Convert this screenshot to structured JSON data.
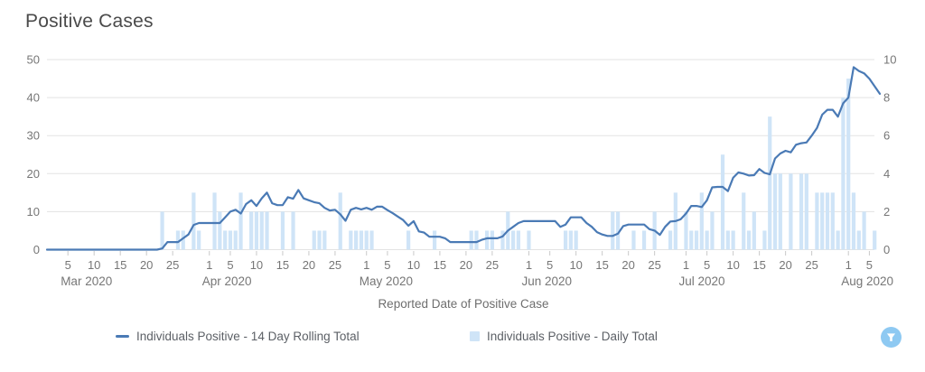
{
  "header": {
    "title": "Positive Cases"
  },
  "colors": {
    "line": "#4a7ab5",
    "bar": "#cfe4f7",
    "grid": "#e3e3e3",
    "axis_text": "#767676",
    "tick_mark": "#c9c9c9",
    "title_text": "#4a4a4a",
    "legend_text": "#5c6066",
    "filter_bg": "#8ec9f2",
    "filter_glyph": "#ffffff"
  },
  "filter_button": {
    "icon": "funnel-icon"
  },
  "chart_data": {
    "type": "line+bar",
    "title": "Positive Cases",
    "xlabel": "Reported Date of Positive Case",
    "x_unit": "days since 2020-03-01",
    "grid": "horizontal",
    "legend_position": "bottom",
    "left_axis": {
      "range": [
        0,
        50
      ],
      "ticks": [
        0,
        10,
        20,
        30,
        40,
        50
      ]
    },
    "right_axis": {
      "range": [
        0,
        10
      ],
      "ticks": [
        0,
        2,
        4,
        6,
        8,
        10
      ]
    },
    "months": [
      {
        "label": "Mar 2020",
        "start_day": 0,
        "ticks": [
          5,
          10,
          15,
          20,
          25
        ]
      },
      {
        "label": "Apr 2020",
        "start_day": 31,
        "ticks": [
          1,
          5,
          10,
          15,
          20,
          25
        ]
      },
      {
        "label": "May 2020",
        "start_day": 61,
        "ticks": [
          1,
          5,
          10,
          15,
          20,
          25
        ]
      },
      {
        "label": "Jun 2020",
        "start_day": 92,
        "ticks": [
          1,
          5,
          10,
          15,
          20,
          25
        ]
      },
      {
        "label": "Jul 2020",
        "start_day": 122,
        "ticks": [
          1,
          5,
          10,
          15,
          20,
          25
        ]
      },
      {
        "label": "Aug 2020",
        "start_day": 153,
        "ticks": [
          1,
          5
        ]
      }
    ],
    "series": [
      {
        "name": "Individuals Positive - 14 Day Rolling Total",
        "type": "line",
        "axis": "left",
        "points": [
          [
            0,
            0
          ],
          [
            21,
            0
          ],
          [
            22,
            0.3
          ],
          [
            23,
            2
          ],
          [
            24,
            2
          ],
          [
            25,
            2
          ],
          [
            26,
            3
          ],
          [
            27,
            4
          ],
          [
            28,
            6.5
          ],
          [
            29,
            7
          ],
          [
            33,
            7
          ],
          [
            34,
            8.5
          ],
          [
            35,
            10
          ],
          [
            36,
            10.5
          ],
          [
            37,
            9.5
          ],
          [
            38,
            12
          ],
          [
            39,
            13
          ],
          [
            40,
            11.5
          ],
          [
            41,
            13.5
          ],
          [
            42,
            15
          ],
          [
            43,
            12.2
          ],
          [
            44,
            11.7
          ],
          [
            45,
            11.7
          ],
          [
            46,
            13.8
          ],
          [
            47,
            13.4
          ],
          [
            48,
            15.7
          ],
          [
            49,
            13.5
          ],
          [
            50,
            13
          ],
          [
            51,
            12.5
          ],
          [
            52,
            12.2
          ],
          [
            53,
            11
          ],
          [
            54,
            10.3
          ],
          [
            55,
            10.5
          ],
          [
            56,
            9.3
          ],
          [
            57,
            7.6
          ],
          [
            58,
            10.5
          ],
          [
            59,
            11
          ],
          [
            60,
            10.6
          ],
          [
            61,
            11
          ],
          [
            62,
            10.5
          ],
          [
            63,
            11.3
          ],
          [
            64,
            11.3
          ],
          [
            65,
            10.4
          ],
          [
            66,
            9.6
          ],
          [
            67,
            8.7
          ],
          [
            68,
            7.8
          ],
          [
            69,
            6.3
          ],
          [
            70,
            7.5
          ],
          [
            71,
            4.8
          ],
          [
            72,
            4.5
          ],
          [
            73,
            3.4
          ],
          [
            75,
            3.4
          ],
          [
            76,
            3
          ],
          [
            77,
            2
          ],
          [
            82,
            2
          ],
          [
            83,
            2.6
          ],
          [
            84,
            3
          ],
          [
            86,
            3
          ],
          [
            87,
            3.5
          ],
          [
            88,
            5
          ],
          [
            89,
            6
          ],
          [
            90,
            7
          ],
          [
            91,
            7.5
          ],
          [
            97,
            7.5
          ],
          [
            98,
            6
          ],
          [
            99,
            6.6
          ],
          [
            100,
            8.5
          ],
          [
            102,
            8.5
          ],
          [
            103,
            7
          ],
          [
            104,
            6
          ],
          [
            105,
            4.6
          ],
          [
            106,
            4
          ],
          [
            107,
            3.6
          ],
          [
            108,
            3.6
          ],
          [
            109,
            4.2
          ],
          [
            110,
            6.2
          ],
          [
            111,
            6.6
          ],
          [
            114,
            6.6
          ],
          [
            115,
            5.4
          ],
          [
            116,
            5
          ],
          [
            117,
            3.9
          ],
          [
            118,
            6
          ],
          [
            119,
            7.4
          ],
          [
            120,
            7.5
          ],
          [
            121,
            8
          ],
          [
            122,
            9.5
          ],
          [
            123,
            11.5
          ],
          [
            124,
            11.5
          ],
          [
            125,
            11.2
          ],
          [
            126,
            13
          ],
          [
            127,
            16.4
          ],
          [
            128,
            16.5
          ],
          [
            129,
            16.5
          ],
          [
            130,
            15.4
          ],
          [
            131,
            18.9
          ],
          [
            132,
            20.3
          ],
          [
            133,
            20
          ],
          [
            134,
            19.5
          ],
          [
            135,
            19.6
          ],
          [
            136,
            21.2
          ],
          [
            137,
            20.2
          ],
          [
            138,
            19.8
          ],
          [
            139,
            24
          ],
          [
            140,
            25.3
          ],
          [
            141,
            26
          ],
          [
            142,
            25.6
          ],
          [
            143,
            27.6
          ],
          [
            144,
            28
          ],
          [
            145,
            28.2
          ],
          [
            146,
            30
          ],
          [
            147,
            32
          ],
          [
            148,
            35.5
          ],
          [
            149,
            36.8
          ],
          [
            150,
            36.8
          ],
          [
            151,
            35
          ],
          [
            152,
            38.5
          ],
          [
            153,
            40
          ],
          [
            154,
            48
          ],
          [
            155,
            47
          ],
          [
            156,
            46.4
          ],
          [
            157,
            45
          ],
          [
            158,
            43
          ],
          [
            159,
            41
          ]
        ]
      },
      {
        "name": "Individuals Positive - Daily Total",
        "type": "bar",
        "axis": "right",
        "points": [
          [
            22,
            2
          ],
          [
            25,
            1
          ],
          [
            26,
            1
          ],
          [
            28,
            3
          ],
          [
            29,
            1
          ],
          [
            32,
            3
          ],
          [
            33,
            2
          ],
          [
            34,
            1
          ],
          [
            35,
            1
          ],
          [
            36,
            1
          ],
          [
            37,
            3
          ],
          [
            39,
            2
          ],
          [
            40,
            2
          ],
          [
            41,
            2
          ],
          [
            42,
            2
          ],
          [
            45,
            2
          ],
          [
            47,
            2
          ],
          [
            51,
            1
          ],
          [
            52,
            1
          ],
          [
            53,
            1
          ],
          [
            56,
            3
          ],
          [
            58,
            1
          ],
          [
            59,
            1
          ],
          [
            60,
            1
          ],
          [
            61,
            1
          ],
          [
            62,
            1
          ],
          [
            69,
            1
          ],
          [
            74,
            1
          ],
          [
            81,
            1
          ],
          [
            82,
            1
          ],
          [
            84,
            1
          ],
          [
            85,
            1
          ],
          [
            87,
            1
          ],
          [
            88,
            2
          ],
          [
            89,
            1
          ],
          [
            90,
            1
          ],
          [
            92,
            1
          ],
          [
            99,
            1
          ],
          [
            100,
            1
          ],
          [
            101,
            1
          ],
          [
            108,
            2
          ],
          [
            109,
            2
          ],
          [
            112,
            1
          ],
          [
            114,
            1
          ],
          [
            116,
            2
          ],
          [
            119,
            1
          ],
          [
            120,
            3
          ],
          [
            122,
            2
          ],
          [
            123,
            1
          ],
          [
            124,
            1
          ],
          [
            125,
            3
          ],
          [
            126,
            1
          ],
          [
            127,
            2
          ],
          [
            129,
            5
          ],
          [
            130,
            1
          ],
          [
            131,
            1
          ],
          [
            133,
            3
          ],
          [
            134,
            1
          ],
          [
            135,
            2
          ],
          [
            137,
            1
          ],
          [
            138,
            7
          ],
          [
            139,
            4
          ],
          [
            140,
            4
          ],
          [
            142,
            4
          ],
          [
            144,
            4
          ],
          [
            145,
            4
          ],
          [
            147,
            3
          ],
          [
            148,
            3
          ],
          [
            149,
            3
          ],
          [
            150,
            3
          ],
          [
            151,
            1
          ],
          [
            152,
            8
          ],
          [
            153,
            9
          ],
          [
            154,
            3
          ],
          [
            155,
            1
          ],
          [
            156,
            2
          ],
          [
            158,
            1
          ]
        ]
      }
    ]
  }
}
